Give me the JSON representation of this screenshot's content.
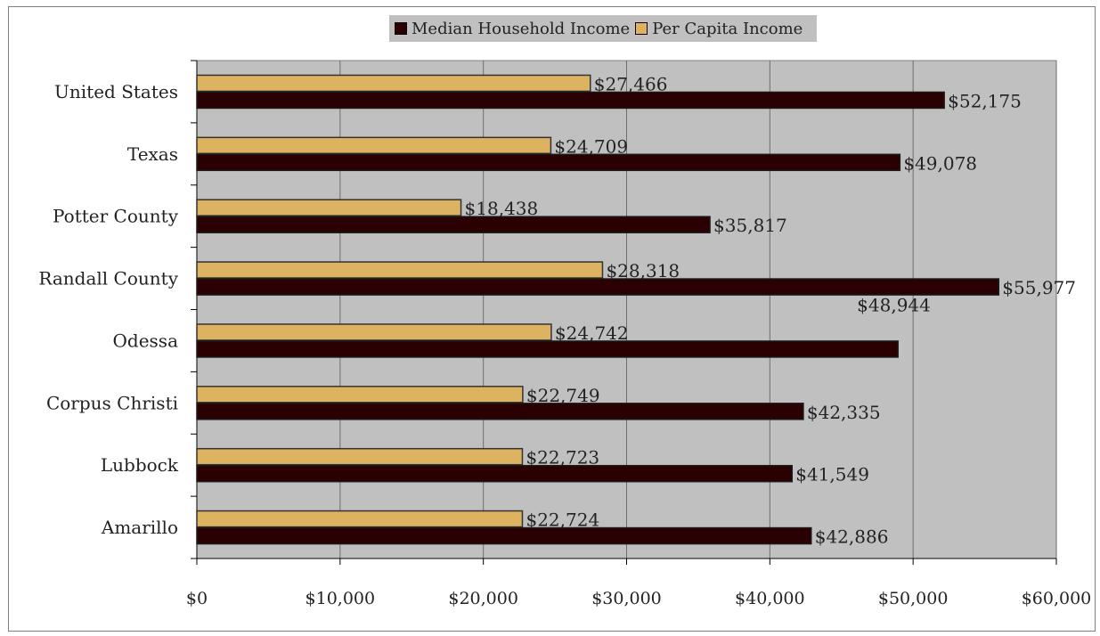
{
  "chart_data": {
    "type": "bar",
    "orientation": "horizontal",
    "title": "",
    "xlabel": "",
    "ylabel": "",
    "categories": [
      "United States",
      "Texas",
      "Potter County",
      "Randall County",
      "Odessa",
      "Corpus Christi",
      "Lubbock",
      "Amarillo"
    ],
    "series": [
      {
        "name": "Median Household Income",
        "color": "#2b0002",
        "values": [
          52175,
          49078,
          35817,
          55977,
          48944,
          42335,
          41549,
          42886
        ],
        "labels": [
          "$52,175",
          "$49,078",
          "$35,817",
          "$55,977",
          "$48,944",
          "$42,335",
          "$41,549",
          "$42,886"
        ]
      },
      {
        "name": "Per Capita Income",
        "color": "#ddb260",
        "values": [
          27466,
          24709,
          18438,
          28318,
          24742,
          22749,
          22723,
          22724
        ],
        "labels": [
          "$27,466",
          "$24,709",
          "$18,438",
          "$28,318",
          "$24,742",
          "$22,749",
          "$22,723",
          "$22,724"
        ]
      }
    ],
    "xlim": [
      0,
      60000
    ],
    "xticks": [
      0,
      10000,
      20000,
      30000,
      40000,
      50000,
      60000
    ],
    "xtick_labels": [
      "$0",
      "$10,000",
      "$20,000",
      "$30,000",
      "$40,000",
      "$50,000",
      "$60,000"
    ],
    "grid": true,
    "legend_position": "top-center",
    "plot_background": "#c0c0c0"
  }
}
